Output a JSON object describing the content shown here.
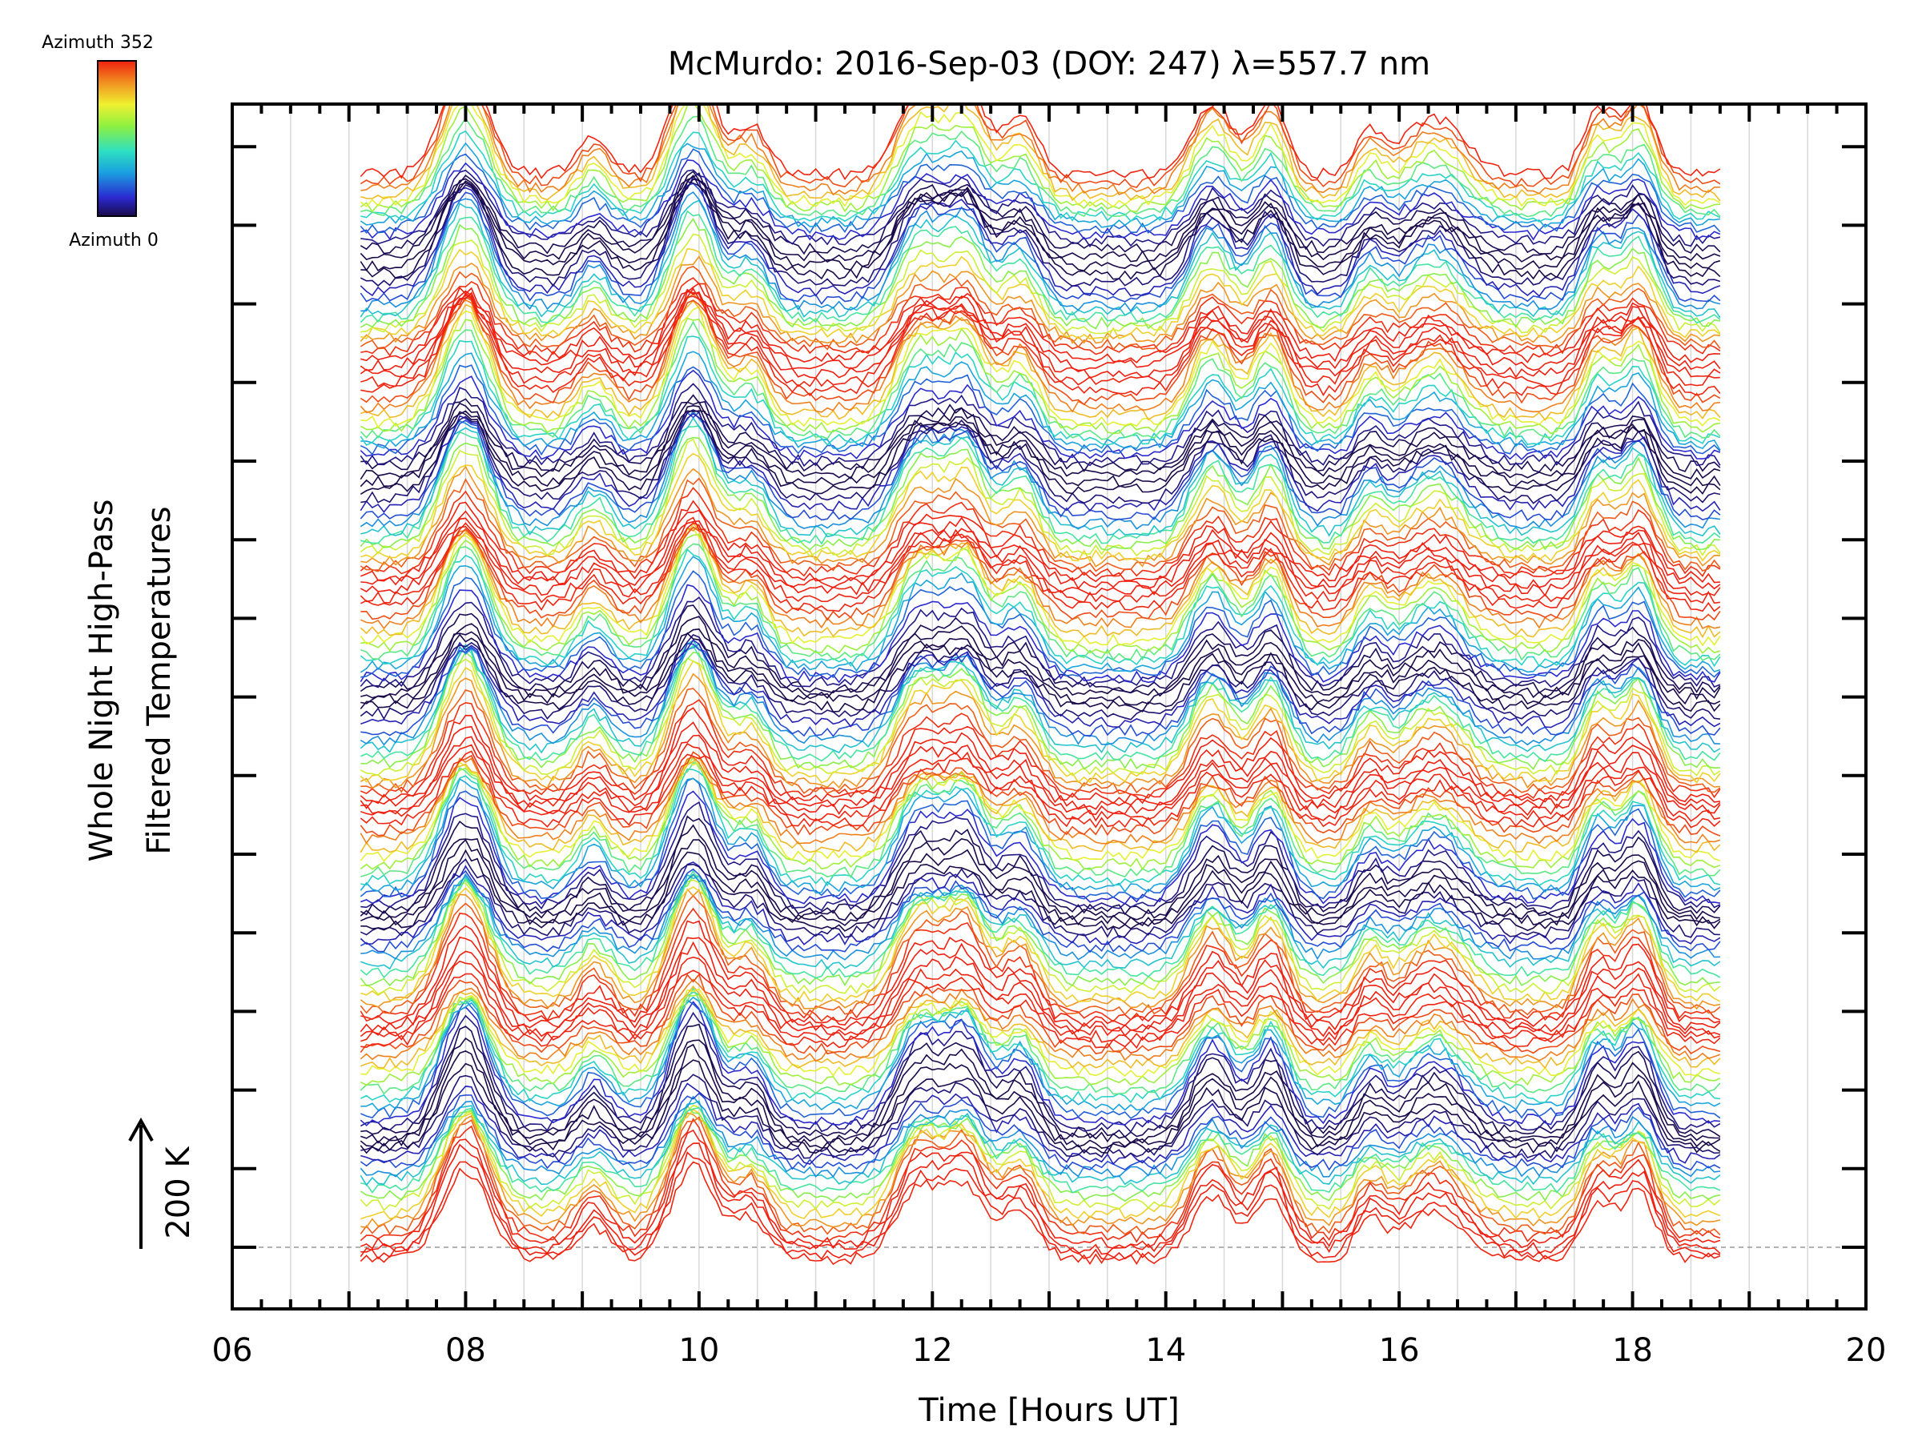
{
  "chart_data": {
    "type": "line",
    "title": "McMurdo: 2016-Sep-03 (DOY: 247) λ=557.7 nm",
    "xlabel": "Time [Hours UT]",
    "ylabel_line1": "Whole Night High-Pass",
    "ylabel_line2": "Filtered Temperatures",
    "scale_label": "200 K",
    "xlim": [
      6,
      20
    ],
    "x_ticks": [
      "06",
      "08",
      "10",
      "12",
      "14",
      "16",
      "18",
      "20"
    ],
    "x_tick_values": [
      6,
      8,
      10,
      12,
      14,
      16,
      18,
      20
    ],
    "data_range_hours": [
      7.1,
      18.75
    ],
    "colorbar": {
      "top_label": "Azimuth 352",
      "bottom_label": "Azimuth 0",
      "min": 0,
      "max": 352
    },
    "grid": true,
    "series_description": "Stacked high-pass filtered temperature traces, one per azimuth, colored by azimuth (rainbow 0–352).",
    "peaks": [
      {
        "t": 8.0,
        "amp": 1.0,
        "w": 0.28
      },
      {
        "t": 9.1,
        "amp": 0.35,
        "w": 0.2
      },
      {
        "t": 9.95,
        "amp": 1.05,
        "w": 0.26
      },
      {
        "t": 10.45,
        "amp": 0.45,
        "w": 0.2
      },
      {
        "t": 11.9,
        "amp": 0.8,
        "w": 0.28
      },
      {
        "t": 12.3,
        "amp": 0.75,
        "w": 0.22
      },
      {
        "t": 12.75,
        "amp": 0.55,
        "w": 0.22
      },
      {
        "t": 14.4,
        "amp": 0.7,
        "w": 0.25
      },
      {
        "t": 14.9,
        "amp": 0.7,
        "w": 0.2
      },
      {
        "t": 15.75,
        "amp": 0.4,
        "w": 0.18
      },
      {
        "t": 16.3,
        "amp": 0.55,
        "w": 0.35
      },
      {
        "t": 17.7,
        "amp": 0.6,
        "w": 0.18
      },
      {
        "t": 18.05,
        "amp": 0.75,
        "w": 0.2
      }
    ],
    "colors": {
      "grid": "#d8d8d8",
      "axis": "#000000",
      "baseline": "#999999"
    }
  }
}
